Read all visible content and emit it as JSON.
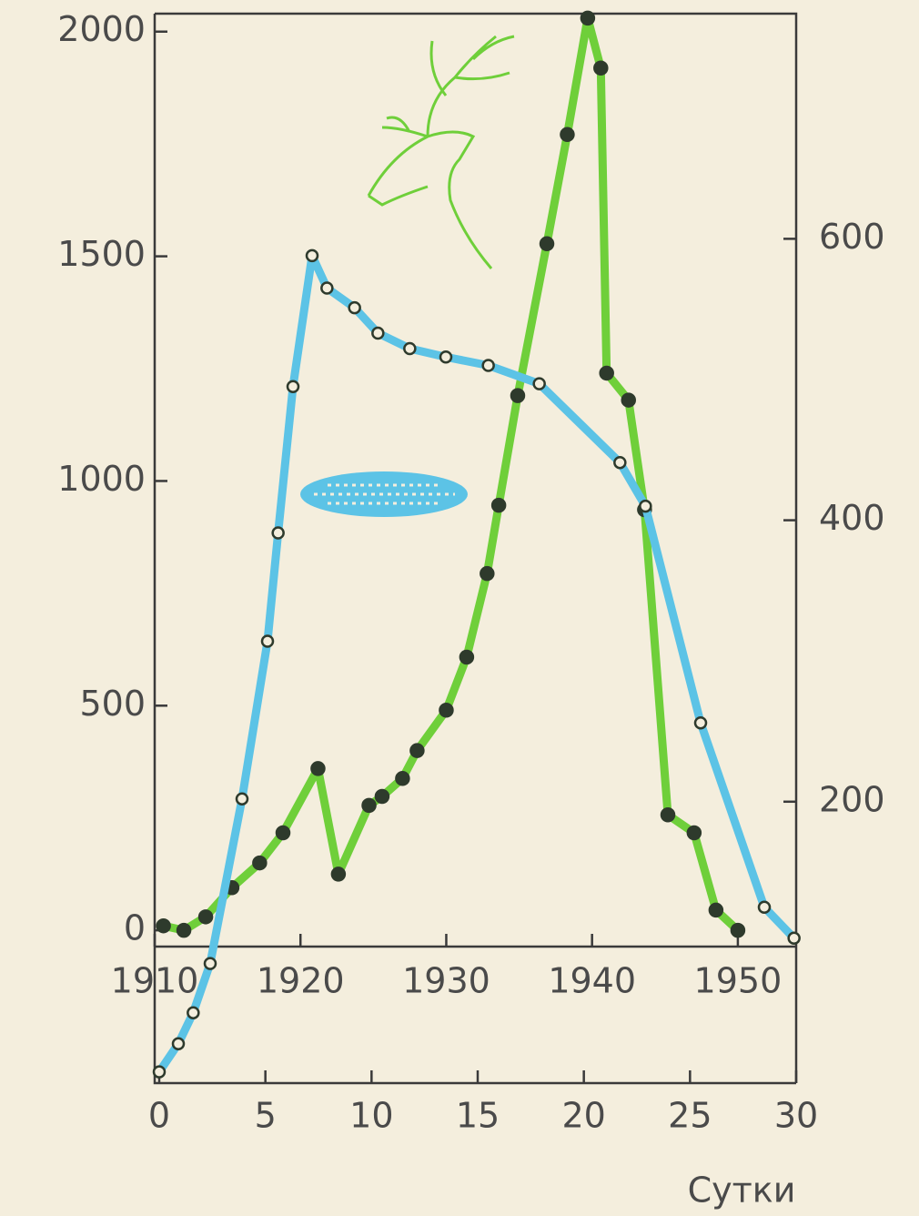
{
  "chart_data": [
    {
      "type": "line",
      "x": [
        1910.6,
        1912,
        1913.5,
        1915.3,
        1917.2,
        1918.8,
        1921.2,
        1922.6,
        1924.7,
        1925.6,
        1927,
        1928,
        1930,
        1931.4,
        1932.8,
        1933.6,
        1934.9,
        1936.9,
        1938.3,
        1939.7,
        1940.6,
        1941,
        1942.5,
        1943.6,
        1945.2,
        1947,
        1948.5,
        1950
      ],
      "series": [
        {
          "color": "#6fcf3a",
          "values": [
            10,
            0,
            30,
            95,
            150,
            217,
            360,
            125,
            278,
            298,
            338,
            400,
            490,
            608,
            794,
            946,
            1190,
            1528,
            1771,
            2030,
            1919,
            1240,
            1180,
            936,
            257,
            217,
            45,
            0
          ]
        }
      ],
      "xlim": [
        1910,
        1954
      ],
      "xticks": [
        1910,
        1920,
        1930,
        1940,
        1950
      ],
      "ylim": [
        -340,
        2040
      ],
      "yticks": [
        0,
        500,
        1000,
        1500,
        2000
      ]
    },
    {
      "type": "line",
      "x_label": "Сутки",
      "x": [
        0,
        0.9,
        1.6,
        2.4,
        3.9,
        5.1,
        5.6,
        6.3,
        7.2,
        7.9,
        9.2,
        10.3,
        11.8,
        13.5,
        15.5,
        17.9,
        21.7,
        22.9,
        25.5,
        28.5,
        29.9
      ],
      "series": [
        {
          "color": "#5cc3e6",
          "values": [
            8,
            28,
            50,
            85,
            202,
            314,
            391,
            495,
            588,
            565,
            551,
            533,
            522,
            516,
            510,
            497,
            441,
            410,
            256,
            125,
            103
          ]
        }
      ],
      "xlim": [
        0,
        30
      ],
      "xticks": [
        0,
        5,
        10,
        15,
        20,
        25,
        30
      ],
      "ylim": [
        0,
        760
      ],
      "yticks": [
        200,
        400,
        600
      ]
    }
  ]
}
